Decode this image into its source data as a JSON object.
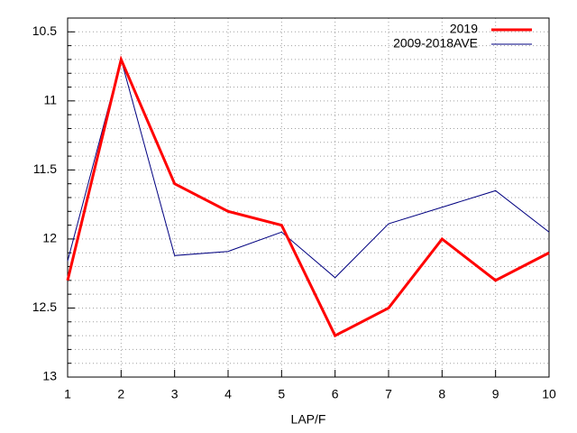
{
  "chart_data": {
    "type": "line",
    "x_label": "LAP/F",
    "x": [
      1,
      2,
      3,
      4,
      5,
      6,
      7,
      8,
      9,
      10
    ],
    "series": [
      {
        "name": "2019",
        "color": "#ff0000",
        "line_width": 3,
        "values": [
          12.3,
          10.7,
          11.6,
          11.8,
          11.9,
          12.7,
          12.5,
          12.0,
          12.3,
          12.1
        ]
      },
      {
        "name": "2009-2018AVE",
        "color": "#000080",
        "line_width": 1,
        "values": [
          12.16,
          10.7,
          12.12,
          12.09,
          11.95,
          12.28,
          11.89,
          11.77,
          11.65,
          11.95
        ]
      }
    ],
    "xlim": [
      1,
      10
    ],
    "xticks": [
      1,
      2,
      3,
      4,
      5,
      6,
      7,
      8,
      9,
      10
    ],
    "ylim": [
      10.4,
      13
    ],
    "y_inverted": true,
    "yticks": [
      10.5,
      11,
      11.5,
      12,
      12.5,
      13
    ],
    "y_minor_ticks": [
      10.4,
      10.6,
      10.7,
      10.8,
      10.9,
      11.1,
      11.2,
      11.3,
      11.4,
      11.6,
      11.7,
      11.8,
      11.9,
      12.1,
      12.2,
      12.3,
      12.4,
      12.6,
      12.7,
      12.8,
      12.9
    ],
    "grid": true,
    "legend_position": "top-right"
  }
}
